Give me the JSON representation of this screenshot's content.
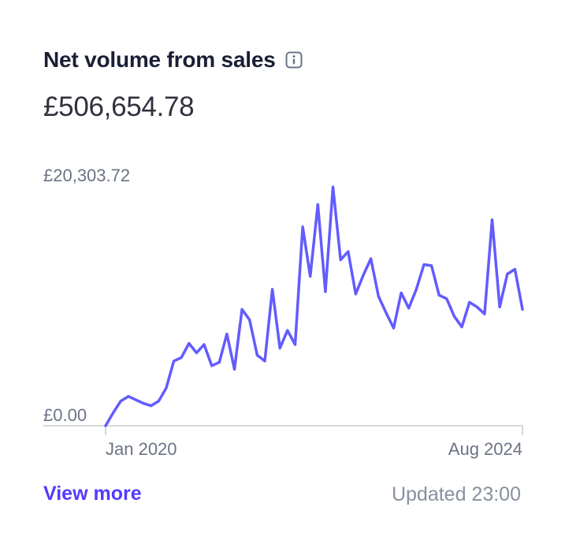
{
  "widget": {
    "title": "Net volume from sales",
    "info_icon": "info-icon",
    "amount": "£506,654.78",
    "view_more_label": "View more",
    "updated_label": "Updated 23:00"
  },
  "colors": {
    "line": "#635bff",
    "axis": "#c7cbd3",
    "muted": "#6b7385",
    "link": "#533afd"
  },
  "chart_data": {
    "type": "line",
    "y_max_label": "£20,303.72",
    "y_min_label": "£0.00",
    "x_start_label": "Jan 2020",
    "x_end_label": "Aug 2024",
    "ylim": [
      0,
      20303.72
    ],
    "grid": false,
    "series": [
      {
        "values": [
          0,
          1100,
          2100,
          2500,
          2200,
          1900,
          1700,
          2100,
          3200,
          5500,
          5800,
          7000,
          6200,
          6900,
          5100,
          5400,
          7800,
          4800,
          9900,
          9000,
          6000,
          5500,
          11600,
          6600,
          8100,
          6900,
          16900,
          12700,
          18800,
          11400,
          20300,
          14100,
          14800,
          11200,
          12800,
          14200,
          11000,
          9600,
          8300,
          11300,
          10000,
          11600,
          13700,
          13600,
          11100,
          10800,
          9300,
          8400,
          10500,
          10100,
          9500,
          17500,
          10100,
          12900,
          13300,
          9900
        ]
      }
    ]
  }
}
